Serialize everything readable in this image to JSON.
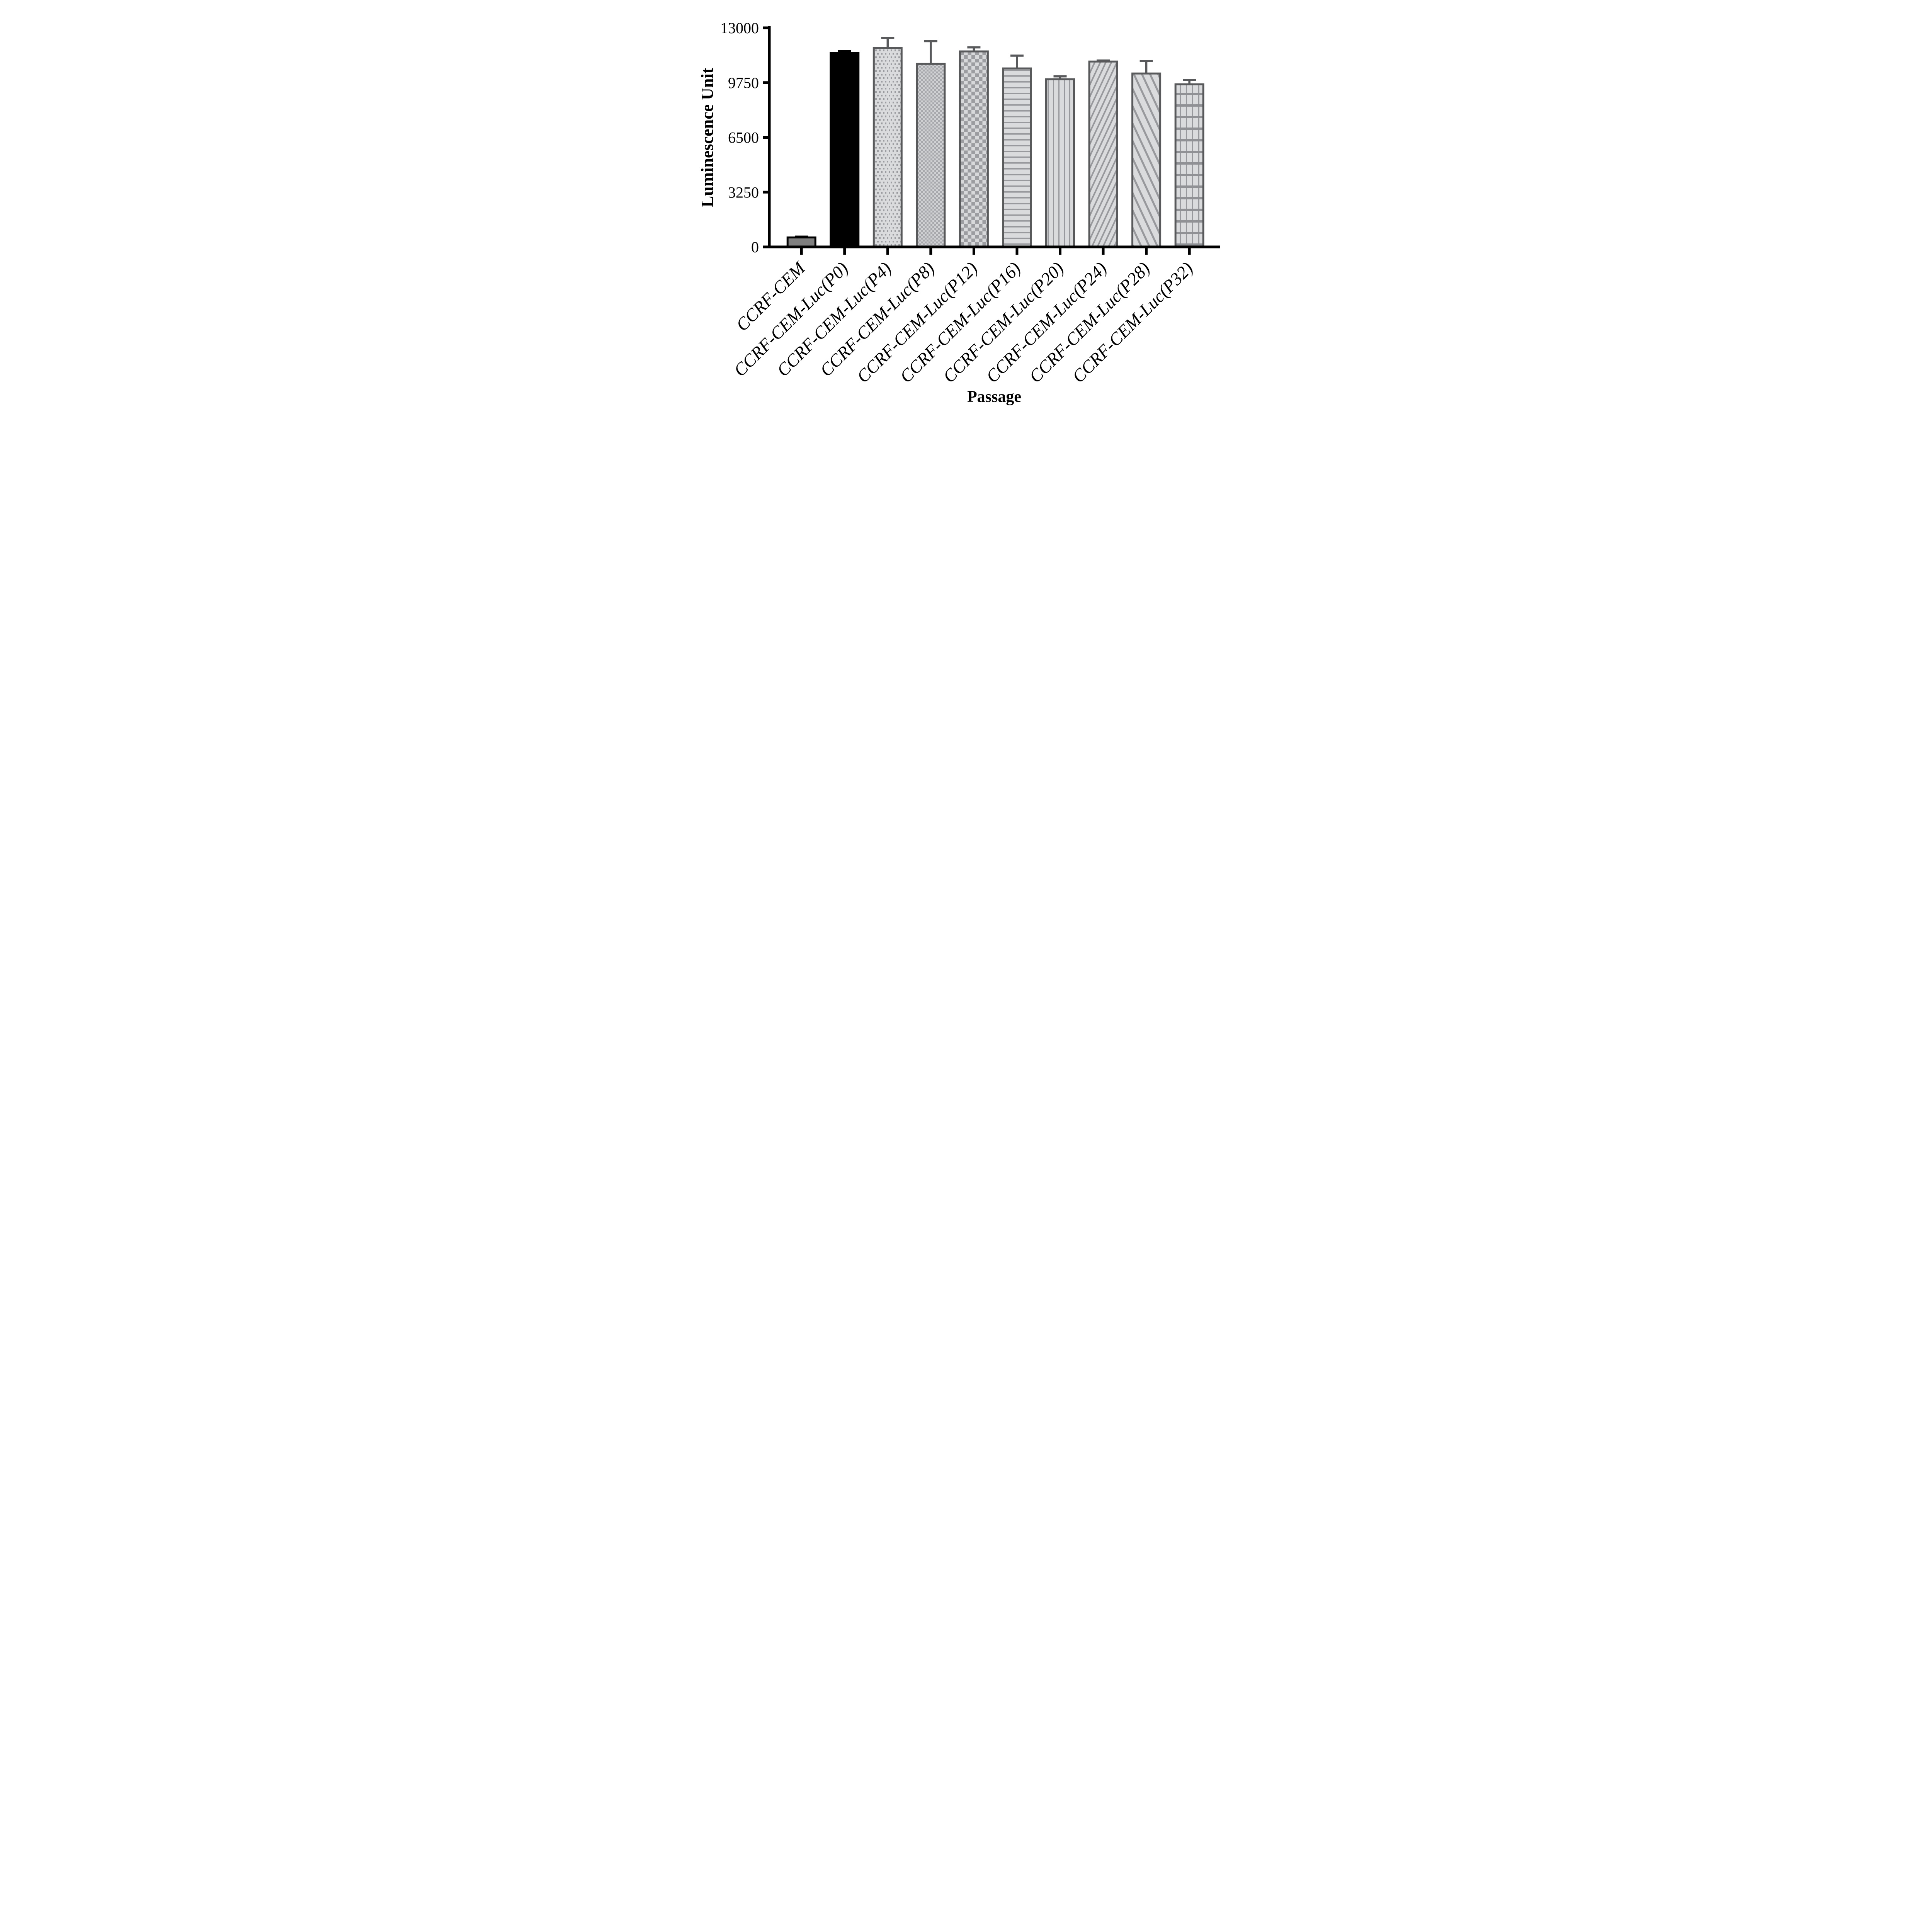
{
  "chart_data": {
    "type": "bar",
    "title": "",
    "xlabel": "Passage",
    "ylabel": "Luminescence Unit",
    "ylim": [
      0,
      13000
    ],
    "yticks": [
      0,
      3250,
      6500,
      9750,
      13000
    ],
    "grid": false,
    "legend": null,
    "categories": [
      "CCRF-CEM",
      "CCRF-CEM-Luc(P0)",
      "CCRF-CEM-Luc(P4)",
      "CCRF-CEM-Luc(P8)",
      "CCRF-CEM-Luc(P12)",
      "CCRF-CEM-Luc(P16)",
      "CCRF-CEM-Luc(P20)",
      "CCRF-CEM-Luc(P24)",
      "CCRF-CEM-Luc(P28)",
      "CCRF-CEM-Luc(P32)"
    ],
    "values": [
      560,
      11520,
      11800,
      10860,
      11600,
      10590,
      9950,
      11000,
      10290,
      9650
    ],
    "errors_plus": [
      50,
      110,
      600,
      1350,
      240,
      760,
      170,
      60,
      740,
      250
    ],
    "patterns": [
      "solid-gray",
      "solid-black",
      "dots",
      "checker-fine",
      "checker-large",
      "horizontal-lines",
      "vertical-lines",
      "diagonal-up",
      "diagonal-down",
      "grid"
    ],
    "outline_colors": [
      "#000000",
      "#000000",
      "#58595B",
      "#58595B",
      "#58595B",
      "#58595B",
      "#58595B",
      "#58595B",
      "#58595B",
      "#58595B"
    ],
    "error_bar_colors": [
      "#000000",
      "#000000",
      "#58595B",
      "#58595B",
      "#58595B",
      "#58595B",
      "#58595B",
      "#58595B",
      "#58595B",
      "#58595B"
    ],
    "colors": {
      "axis": "#000000",
      "text": "#000000",
      "solid_gray_fill": "#7F7F7F",
      "solid_black_fill": "#000000",
      "pattern_background": "#DADBDC",
      "pattern_line": "#97999C",
      "dot_color": "#9A9CA0",
      "checker_fine_dark": "#A6A8AB",
      "checker_fine_light": "#D0D1D3",
      "checker_large_dark": "#9B9DA0",
      "checker_large_light": "#D7D8D9",
      "grid_line_strong": "#8F9194"
    }
  }
}
